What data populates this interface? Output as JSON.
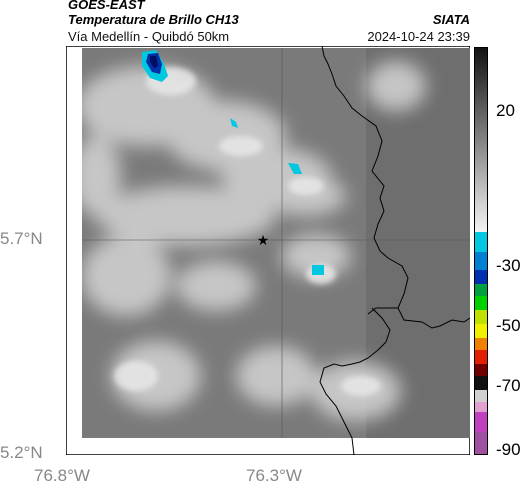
{
  "header": {
    "satellite": "GOES-EAST",
    "product": "Temperatura de Brillo CH13",
    "brand": "SIATA",
    "route": "Vía Medellín - Quibdó 50km",
    "datetime": "2024-10-24 23:39"
  },
  "map": {
    "lat_labels": [
      "5.7°N",
      "5.2°N"
    ],
    "lon_labels": [
      "76.8°W",
      "76.3°W"
    ],
    "marker": "star-icon",
    "gridlines": true
  },
  "colorbar": {
    "ticks": [
      "20",
      "-30",
      "-50",
      "-70",
      "-90"
    ],
    "colors": {
      "warm_top": "#1a1a1a",
      "cyan": "#00c8e0",
      "blue": "#0028a0",
      "green": "#00c000",
      "yellow": "#f0f000",
      "red": "#e02000",
      "magenta": "#c040c0"
    }
  }
}
